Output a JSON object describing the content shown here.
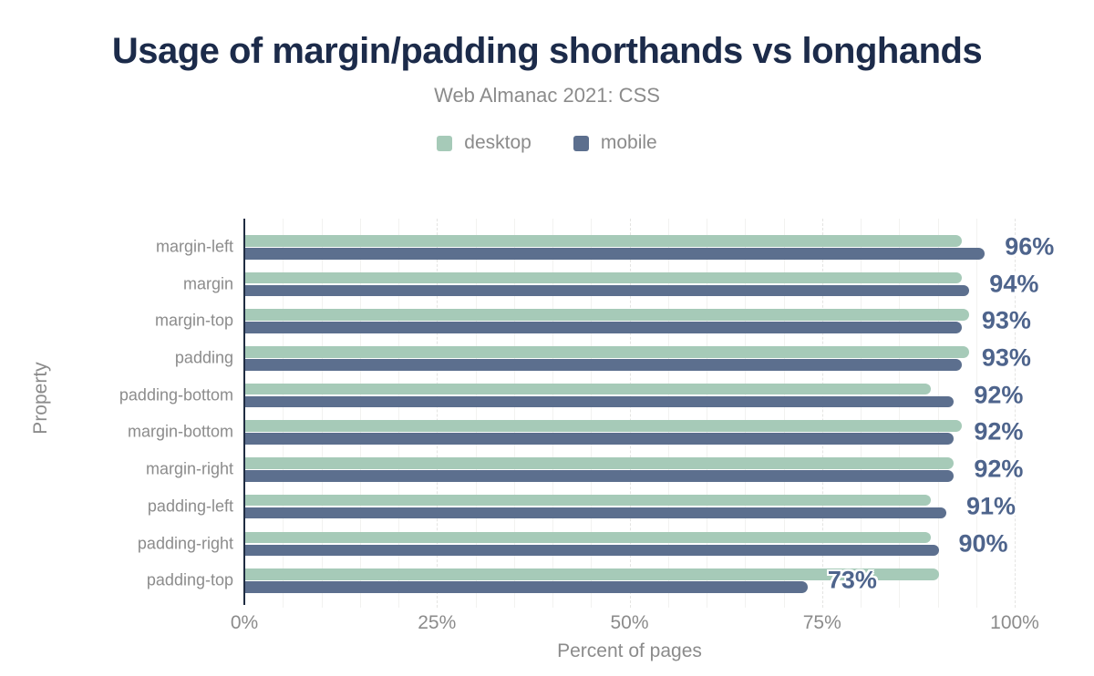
{
  "header": {
    "title": "Usage of margin/padding shorthands vs longhands",
    "subtitle": "Web Almanac 2021: CSS"
  },
  "legend": {
    "items": [
      {
        "label": "desktop",
        "color": "#a6cab8"
      },
      {
        "label": "mobile",
        "color": "#5c6f8e"
      }
    ]
  },
  "chart_data": {
    "type": "bar",
    "orientation": "horizontal",
    "title": "Usage of margin/padding shorthands vs longhands",
    "subtitle": "Web Almanac 2021: CSS",
    "xlabel": "Percent of pages",
    "ylabel": "Property",
    "xlim": [
      0,
      100
    ],
    "x_ticks": [
      {
        "label": "0%",
        "value": 0
      },
      {
        "label": "25%",
        "value": 25
      },
      {
        "label": "50%",
        "value": 50
      },
      {
        "label": "75%",
        "value": 75
      },
      {
        "label": "100%",
        "value": 100
      }
    ],
    "grid": "vertical; faint minor lines every 5%, dashed major lines every 25%",
    "legend_position": "top",
    "categories": [
      "margin-left",
      "margin",
      "margin-top",
      "padding",
      "padding-bottom",
      "margin-bottom",
      "margin-right",
      "padding-left",
      "padding-right",
      "padding-top"
    ],
    "series": [
      {
        "name": "desktop",
        "color": "#a6cab8",
        "values": [
          93,
          93,
          94,
          94,
          89,
          93,
          92,
          89,
          89,
          90
        ]
      },
      {
        "name": "mobile",
        "color": "#5c6f8e",
        "values": [
          96,
          94,
          93,
          93,
          92,
          92,
          92,
          91,
          90,
          73
        ]
      }
    ],
    "bar_value_labels": {
      "labeled_series": "mobile",
      "texts": [
        "96%",
        "94%",
        "93%",
        "93%",
        "92%",
        "92%",
        "92%",
        "91%",
        "90%",
        "73%"
      ],
      "color": "#4e648c"
    },
    "colors": {
      "title": "#1c2b4a",
      "axis_line": "#1f2c42",
      "tick_text": "#8b8b8b",
      "category_text": "#8c8c8c"
    }
  }
}
